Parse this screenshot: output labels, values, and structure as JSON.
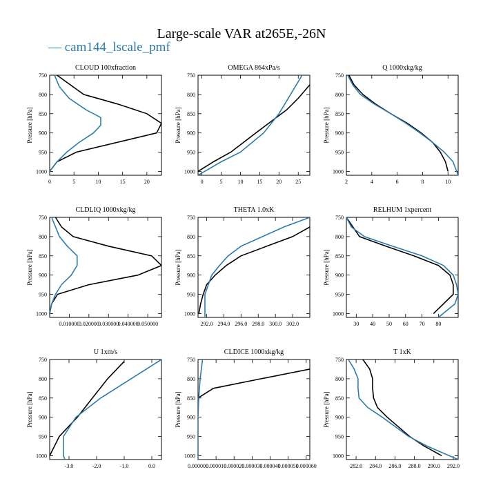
{
  "figure": {
    "title": "Large-scale VAR at265E,-26N",
    "legend_label": "cam144_lscale_pmf",
    "colors": {
      "black_series": "#000000",
      "blue_series": "#2b7bb0"
    }
  },
  "chart_data": [
    {
      "type": "line",
      "title": "CLOUD 100xfraction",
      "ylabel": "Pressure [hPa]",
      "xlim": [
        0,
        23
      ],
      "xticks": [
        0,
        5,
        10,
        15,
        20
      ],
      "xtick_labels": [
        "0",
        "5",
        "10",
        "15",
        "20"
      ],
      "ylim": [
        1010,
        750
      ],
      "yticks": [
        750,
        800,
        850,
        900,
        950,
        1000
      ],
      "ytick_labels": [
        "750",
        "800",
        "850",
        "900",
        "950",
        "1000"
      ],
      "series": [
        {
          "color": "#000000",
          "y": [
            750,
            800,
            825,
            850,
            875,
            900,
            950,
            975,
            1000
          ],
          "x": [
            1.5,
            7,
            14,
            20,
            23,
            22,
            5.5,
            1.5,
            0
          ]
        },
        {
          "color": "#2b7bb0",
          "y": [
            750,
            780,
            810,
            840,
            860,
            880,
            900,
            925,
            950,
            975,
            1000
          ],
          "x": [
            1,
            2,
            4,
            7.5,
            10.5,
            10.5,
            9,
            6,
            3.5,
            1.5,
            0
          ]
        }
      ]
    },
    {
      "type": "line",
      "title": "OMEGA 864xPa/s",
      "ylabel": "Pressure [hPa]",
      "xlim": [
        -1,
        28
      ],
      "xticks": [
        0,
        5,
        10,
        15,
        20,
        25
      ],
      "xtick_labels": [
        "0",
        "5",
        "10",
        "15",
        "20",
        "25"
      ],
      "ylim": [
        1010,
        750
      ],
      "yticks": [
        750,
        800,
        850,
        900,
        950,
        1000
      ],
      "ytick_labels": [
        "750",
        "800",
        "850",
        "900",
        "950",
        "1000"
      ],
      "series": [
        {
          "color": "#000000",
          "y": [
            775,
            810,
            840,
            870,
            900,
            950,
            975,
            1000
          ],
          "x": [
            28,
            25,
            22,
            18,
            14,
            7.5,
            3,
            -1
          ]
        },
        {
          "color": "#2b7bb0",
          "y": [
            750,
            800,
            850,
            900,
            950,
            975,
            1010
          ],
          "x": [
            26,
            23,
            20,
            16,
            10,
            5,
            -1
          ]
        }
      ]
    },
    {
      "type": "line",
      "title": "Q 1000xkg/kg",
      "ylabel": "Pressure [hPa]",
      "xlim": [
        2,
        10.8
      ],
      "xticks": [
        2,
        4,
        6,
        8,
        10
      ],
      "xtick_labels": [
        "2",
        "4",
        "6",
        "8",
        "10"
      ],
      "ylim": [
        1010,
        750
      ],
      "yticks": [
        750,
        800,
        850,
        900,
        950,
        1000
      ],
      "ytick_labels": [
        "750",
        "800",
        "850",
        "900",
        "950",
        "1000"
      ],
      "series": [
        {
          "color": "#000000",
          "y": [
            750,
            775,
            800,
            825,
            850,
            875,
            900,
            925,
            950,
            975,
            1000
          ],
          "x": [
            2.2,
            2.6,
            3.3,
            4.3,
            5.5,
            6.8,
            7.9,
            8.8,
            9.4,
            9.8,
            10
          ]
        },
        {
          "color": "#2b7bb0",
          "y": [
            750,
            775,
            800,
            825,
            850,
            875,
            900,
            925,
            950,
            975,
            1010
          ],
          "x": [
            2.1,
            2.5,
            3.1,
            4.2,
            5.5,
            6.7,
            7.8,
            8.8,
            9.7,
            10.4,
            10.8
          ]
        }
      ]
    },
    {
      "type": "line",
      "title": "CLDLIQ 1000xkg/kg",
      "ylabel": "Pressure [hPa]",
      "xlim": [
        0,
        0.057
      ],
      "xticks": [
        0.01,
        0.02,
        0.03,
        0.04,
        0.05
      ],
      "xtick_labels": [
        "0.010000",
        "0.020000",
        "0.030000",
        "0.040000",
        "0.050000"
      ],
      "ylim": [
        1010,
        750
      ],
      "yticks": [
        750,
        800,
        850,
        900,
        950,
        1000
      ],
      "ytick_labels": [
        "750",
        "800",
        "850",
        "900",
        "950",
        "1000"
      ],
      "series": [
        {
          "color": "#000000",
          "y": [
            750,
            775,
            800,
            825,
            850,
            875,
            900,
            925,
            950,
            975,
            1000
          ],
          "x": [
            0.003,
            0.006,
            0.012,
            0.03,
            0.052,
            0.057,
            0.045,
            0.02,
            0.004,
            0.001,
            0
          ]
        },
        {
          "color": "#2b7bb0",
          "y": [
            750,
            775,
            800,
            825,
            850,
            875,
            900,
            925,
            950,
            975,
            1000
          ],
          "x": [
            0.001,
            0.003,
            0.005,
            0.009,
            0.014,
            0.014,
            0.011,
            0.006,
            0.003,
            0.001,
            0
          ]
        }
      ]
    },
    {
      "type": "line",
      "title": "THETA 1.0xK",
      "ylabel": "Pressure [hPa]",
      "xlim": [
        291,
        304
      ],
      "xticks": [
        292,
        294,
        296,
        298,
        300,
        302
      ],
      "xtick_labels": [
        "292.0",
        "294.0",
        "296.0",
        "298.0",
        "300.0",
        "302.0"
      ],
      "ylim": [
        1010,
        750
      ],
      "yticks": [
        750,
        800,
        850,
        900,
        950,
        1000
      ],
      "ytick_labels": [
        "750",
        "800",
        "850",
        "900",
        "950",
        "1000"
      ],
      "series": [
        {
          "color": "#000000",
          "y": [
            775,
            800,
            825,
            850,
            875,
            900,
            925,
            950,
            975,
            1000
          ],
          "x": [
            304,
            302,
            299,
            296,
            294.3,
            293,
            292,
            291.6,
            291.3,
            291.1
          ]
        },
        {
          "color": "#2b7bb0",
          "y": [
            750,
            775,
            800,
            825,
            850,
            875,
            900,
            950,
            1010
          ],
          "x": [
            304,
            301,
            298.5,
            296,
            294.5,
            293.5,
            292.6,
            291.8,
            291.8
          ]
        }
      ]
    },
    {
      "type": "line",
      "title": "RELHUM 1xpercent",
      "ylabel": "Pressure [hPa]",
      "xlim": [
        24,
        92
      ],
      "xticks": [
        30,
        40,
        50,
        60,
        70,
        80
      ],
      "xtick_labels": [
        "30",
        "40",
        "50",
        "60",
        "70",
        "80"
      ],
      "ylim": [
        1010,
        750
      ],
      "yticks": [
        750,
        800,
        850,
        900,
        950,
        1000
      ],
      "ytick_labels": [
        "750",
        "800",
        "850",
        "900",
        "950",
        "1000"
      ],
      "series": [
        {
          "color": "#000000",
          "y": [
            750,
            775,
            800,
            825,
            850,
            875,
            900,
            925,
            950,
            975,
            1000
          ],
          "x": [
            24,
            28,
            32,
            48,
            65,
            80,
            87,
            89,
            89,
            83,
            77
          ]
        },
        {
          "color": "#2b7bb0",
          "y": [
            750,
            775,
            800,
            825,
            850,
            875,
            900,
            925,
            950,
            975,
            1010
          ],
          "x": [
            24,
            27,
            35,
            52,
            70,
            83,
            89,
            91,
            92,
            90,
            80
          ]
        }
      ]
    },
    {
      "type": "line",
      "title": "U 1xm/s",
      "ylabel": "Pressure [hPa]",
      "xlim": [
        -3.7,
        0.35
      ],
      "xticks": [
        -3,
        -2,
        -1,
        0
      ],
      "xtick_labels": [
        "-3.0",
        "-2.0",
        "-1.0",
        "0.0"
      ],
      "ylim": [
        1010,
        750
      ],
      "yticks": [
        750,
        800,
        850,
        900,
        950,
        1000
      ],
      "ytick_labels": [
        "750",
        "800",
        "850",
        "900",
        "950",
        "1000"
      ],
      "series": [
        {
          "color": "#000000",
          "y": [
            755,
            800,
            850,
            900,
            950,
            1000
          ],
          "x": [
            -1.0,
            -1.6,
            -2.15,
            -2.7,
            -3.35,
            -3.7
          ]
        },
        {
          "color": "#2b7bb0",
          "y": [
            750,
            800,
            850,
            900,
            950,
            1000,
            1010
          ],
          "x": [
            0.35,
            -0.75,
            -1.85,
            -2.75,
            -3.2,
            -3.2,
            -3.15
          ]
        }
      ]
    },
    {
      "type": "line",
      "title": "CLDICE 1000xkg/kg",
      "ylabel": "Pressure [hPa]",
      "xlim": [
        0,
        6.2e-05
      ],
      "xticks": [
        0,
        1e-05,
        2e-05,
        3e-05,
        4e-05,
        5e-05,
        6e-05
      ],
      "xtick_labels": [
        "0.000000",
        "0.000010",
        "0.000020",
        "0.000030",
        "0.000040",
        "0.000050",
        "0.000060"
      ],
      "ylim": [
        1010,
        750
      ],
      "yticks": [
        750,
        800,
        850,
        900,
        950,
        1000
      ],
      "ytick_labels": [
        "750",
        "800",
        "850",
        "900",
        "950",
        "1000"
      ],
      "series": [
        {
          "color": "#000000",
          "y": [
            775,
            800,
            825,
            850
          ],
          "x": [
            6.2e-05,
            3.5e-05,
            8.5e-06,
            0
          ]
        },
        {
          "color": "#2b7bb0",
          "y": [
            750,
            800,
            850,
            900,
            1010
          ],
          "x": [
            2.5e-06,
            1.2e-06,
            4e-07,
            0,
            0
          ]
        }
      ]
    },
    {
      "type": "line",
      "title": "T 1xK",
      "ylabel": "Pressure [hPa]",
      "xlim": [
        281,
        292.5
      ],
      "xticks": [
        282,
        284,
        286,
        288,
        290,
        292
      ],
      "xtick_labels": [
        "282.0",
        "284.0",
        "286.0",
        "288.0",
        "290.0",
        "292.0"
      ],
      "ylim": [
        1010,
        750
      ],
      "yticks": [
        750,
        800,
        850,
        900,
        950,
        1000
      ],
      "ytick_labels": [
        "750",
        "800",
        "850",
        "900",
        "950",
        "1000"
      ],
      "series": [
        {
          "color": "#000000",
          "y": [
            750,
            775,
            800,
            825,
            850,
            875,
            900,
            950,
            975,
            1000
          ],
          "x": [
            282.7,
            283.4,
            283.7,
            283.7,
            283.8,
            284.2,
            285.2,
            287.5,
            289,
            290.8
          ]
        },
        {
          "color": "#2b7bb0",
          "y": [
            750,
            775,
            800,
            825,
            850,
            875,
            900,
            950,
            975,
            1010
          ],
          "x": [
            281.2,
            281.8,
            282.2,
            282.2,
            282.3,
            283.2,
            284.7,
            287.4,
            289.3,
            292.5
          ]
        }
      ]
    }
  ]
}
